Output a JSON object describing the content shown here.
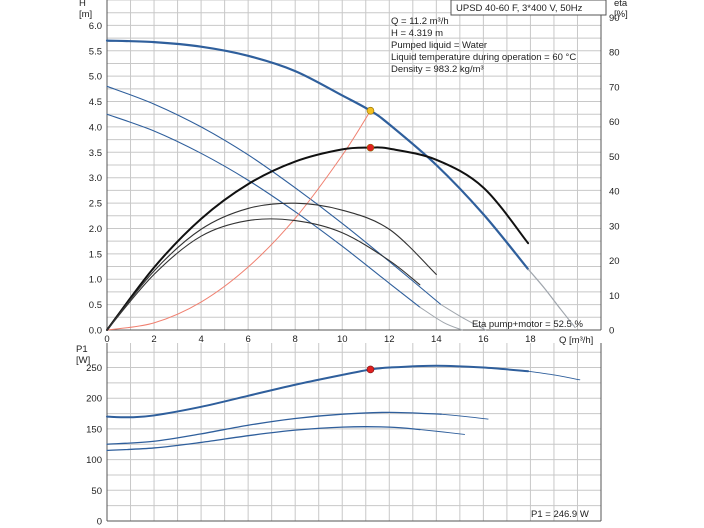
{
  "chart_data": [
    {
      "type": "line",
      "title_box": "UPSD 40-60 F, 3*400 V, 50Hz",
      "ylabel": "H",
      "yunit": "[m]",
      "y2label": "eta",
      "y2unit": "[%]",
      "xlabel": "Q [m³/h]",
      "xlim": [
        0,
        21
      ],
      "ylim": [
        0,
        6.5
      ],
      "y2lim": [
        0,
        95
      ],
      "grid": true,
      "x_ticks": [
        "0",
        "2",
        "4",
        "6",
        "8",
        "10",
        "12",
        "14",
        "16",
        "18"
      ],
      "y_ticks": [
        "0.0",
        "0.5",
        "1.0",
        "1.5",
        "2.0",
        "2.5",
        "3.0",
        "3.5",
        "4.0",
        "4.5",
        "5.0",
        "5.5",
        "6.0"
      ],
      "y2_ticks": [
        "0",
        "10",
        "20",
        "30",
        "40",
        "50",
        "60",
        "70",
        "80",
        "90"
      ],
      "info_lines": [
        "Q = 11.2 m³/h",
        "H = 4.319 m",
        "Pumped liquid = Water",
        "Liquid temperature during operation = 60 °C",
        "Density = 983.2 kg/m³"
      ],
      "series": [
        {
          "role": "H speed 3",
          "axis": "left",
          "color": "#2f5f9c",
          "width": 2.2,
          "x": [
            0,
            2,
            4,
            6,
            8,
            10,
            11.2,
            12,
            14,
            16,
            17.9
          ],
          "y": [
            5.7,
            5.67,
            5.58,
            5.4,
            5.1,
            4.62,
            4.319,
            4.05,
            3.25,
            2.28,
            1.2
          ]
        },
        {
          "role": "H speed 3 extension",
          "axis": "left",
          "color": "#a0a6ad",
          "width": 1.2,
          "dash": false,
          "x": [
            17.9,
            18.6,
            19.3,
            19.9
          ],
          "y": [
            1.2,
            0.82,
            0.4,
            0.05
          ]
        },
        {
          "role": "H speed 2",
          "axis": "left",
          "color": "#2f5f9c",
          "width": 1.1,
          "x": [
            0,
            2,
            4,
            6,
            8,
            10,
            12,
            14.2
          ],
          "y": [
            4.8,
            4.45,
            4.0,
            3.45,
            2.8,
            2.1,
            1.35,
            0.5
          ]
        },
        {
          "role": "H speed 2 extension",
          "axis": "left",
          "color": "#a0a6ad",
          "width": 1.0,
          "x": [
            14.2,
            15.2,
            16.1
          ],
          "y": [
            0.5,
            0.22,
            0.0
          ]
        },
        {
          "role": "H speed 1",
          "axis": "left",
          "color": "#2f5f9c",
          "width": 1.1,
          "x": [
            0,
            2,
            4,
            6,
            8,
            10,
            12,
            13.3
          ],
          "y": [
            4.25,
            3.92,
            3.48,
            2.95,
            2.33,
            1.65,
            0.92,
            0.45
          ]
        },
        {
          "role": "H speed 1 extension",
          "axis": "left",
          "color": "#a0a6ad",
          "width": 1.0,
          "x": [
            13.3,
            14.3,
            15.1
          ],
          "y": [
            0.45,
            0.15,
            0.0
          ]
        },
        {
          "role": "system curve",
          "axis": "left",
          "color": "#f08070",
          "width": 1.0,
          "x": [
            0,
            2,
            4,
            6,
            8,
            10,
            11.2
          ],
          "y": [
            0,
            0.14,
            0.55,
            1.24,
            2.2,
            3.44,
            4.319
          ]
        },
        {
          "role": "eta speed 3",
          "axis": "right",
          "color": "#111111",
          "width": 2.0,
          "x": [
            0,
            2,
            4,
            6,
            8,
            10,
            11.2,
            12,
            14,
            16,
            17.9
          ],
          "y": [
            0,
            18,
            32,
            42,
            48.5,
            52,
            52.5,
            52.2,
            49,
            41,
            25
          ]
        },
        {
          "role": "eta speed 2",
          "axis": "right",
          "color": "#333333",
          "width": 1.1,
          "x": [
            0,
            2,
            4,
            6,
            8,
            10,
            12,
            14
          ],
          "y": [
            0,
            17,
            29,
            35,
            36.5,
            34.5,
            29,
            16
          ]
        },
        {
          "role": "eta speed 1",
          "axis": "right",
          "color": "#333333",
          "width": 1.1,
          "x": [
            0,
            2,
            4,
            6,
            8,
            10,
            12,
            13.3
          ],
          "y": [
            0,
            16,
            27,
            31.5,
            31.5,
            28,
            20,
            13
          ]
        }
      ],
      "points": [
        {
          "role": "duty point H",
          "axis": "left",
          "x": 11.2,
          "y": 4.319,
          "color": "#f4c020"
        },
        {
          "role": "duty point eta",
          "axis": "right",
          "x": 11.2,
          "y": 52.5,
          "color": "#e02020"
        }
      ],
      "footer_label": "Eta pump+motor = 52.5 %"
    },
    {
      "type": "line",
      "ylabel": "P1",
      "yunit": "[W]",
      "xlim": [
        0,
        21
      ],
      "ylim": [
        0,
        290
      ],
      "grid": true,
      "y_ticks": [
        "0",
        "50",
        "100",
        "150",
        "200",
        "250"
      ],
      "series": [
        {
          "role": "P1 speed 3",
          "color": "#2f5f9c",
          "width": 2.0,
          "x": [
            0,
            1,
            2,
            4,
            6,
            8,
            10,
            11.2,
            12,
            14,
            16,
            17.9
          ],
          "y": [
            170,
            169,
            172,
            186,
            204,
            222,
            238,
            246.9,
            250,
            253,
            250,
            244
          ]
        },
        {
          "role": "P1 speed 3 extension",
          "color": "#2f5f9c",
          "width": 0.9,
          "x": [
            17.9,
            19,
            20.1
          ],
          "y": [
            244,
            238,
            230
          ]
        },
        {
          "role": "P1 speed 2",
          "color": "#2f5f9c",
          "width": 1.3,
          "x": [
            0,
            2,
            4,
            6,
            8,
            10,
            12,
            14.2
          ],
          "y": [
            125,
            130,
            142,
            156,
            167,
            174,
            177,
            174
          ]
        },
        {
          "role": "P1 speed 2 extension",
          "color": "#2f5f9c",
          "width": 0.9,
          "x": [
            14.2,
            15.3,
            16.2
          ],
          "y": [
            174,
            170,
            166
          ]
        },
        {
          "role": "P1 speed 1",
          "color": "#2f5f9c",
          "width": 1.3,
          "x": [
            0,
            2,
            4,
            6,
            8,
            10,
            12,
            13.3
          ],
          "y": [
            115,
            119,
            128,
            139,
            148,
            153,
            153,
            149
          ]
        },
        {
          "role": "P1 speed 1 extension",
          "color": "#2f5f9c",
          "width": 0.9,
          "x": [
            13.3,
            14.3,
            15.2
          ],
          "y": [
            149,
            145,
            141
          ]
        }
      ],
      "points": [
        {
          "role": "duty point P1",
          "x": 11.2,
          "y": 246.9,
          "color": "#e02020"
        }
      ],
      "footer_label": "P1 = 246.9 W"
    }
  ]
}
